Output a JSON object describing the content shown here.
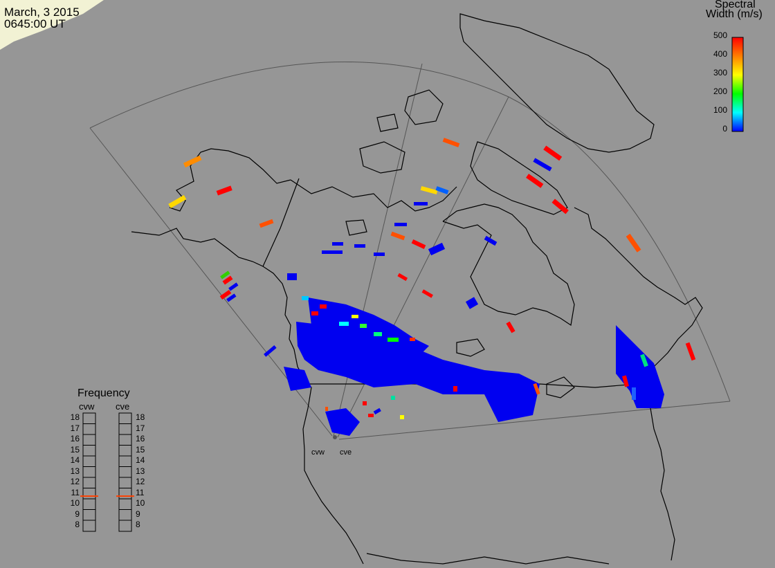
{
  "header": {
    "date": "March, 3 2015",
    "time": "0645:00 UT"
  },
  "colorbar": {
    "title_line1": "Spectral",
    "title_line2": "Width (m/s)",
    "ticks": [
      "500",
      "400",
      "300",
      "200",
      "100",
      "0"
    ],
    "colors": [
      "#ff0000",
      "#ff7f00",
      "#ffff00",
      "#00ff00",
      "#00ffff",
      "#0000ff"
    ]
  },
  "frequency_panel": {
    "title": "Frequency",
    "radars": [
      "cvw",
      "cve"
    ],
    "scale": [
      "18",
      "17",
      "16",
      "15",
      "14",
      "13",
      "12",
      "11",
      "10",
      "9",
      "8"
    ],
    "marker_value": 10.7,
    "marker_color": "#ff4000"
  },
  "radar_sites": {
    "west_label": "cvw",
    "east_label": "cve"
  },
  "colors": {
    "background": "#969696",
    "coast": "#000000",
    "fov_outline": "#505050",
    "daylight_terminator": "#f4f4d8"
  }
}
